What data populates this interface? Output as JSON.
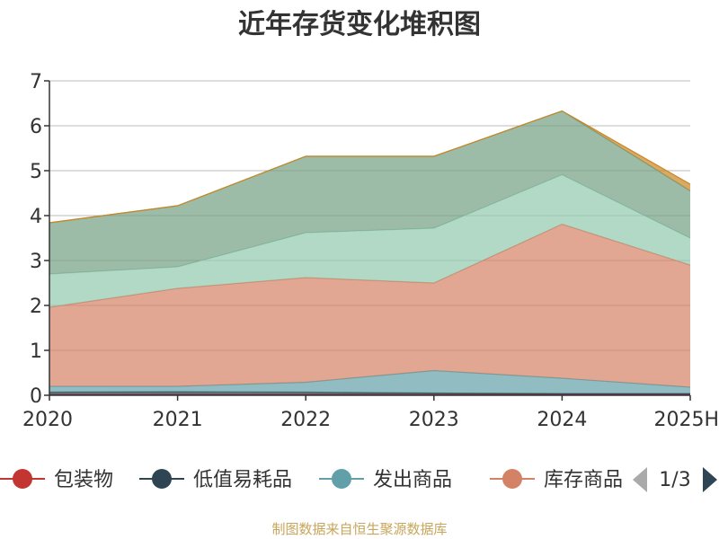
{
  "chart_data": {
    "type": "area",
    "stacked": true,
    "title": "近年存货变化堆积图",
    "ylabel": "",
    "categories": [
      "2020",
      "2021",
      "2022",
      "2023",
      "2024",
      "2025H"
    ],
    "ylim": [
      0,
      7
    ],
    "yticks": [
      0,
      1,
      2,
      3,
      4,
      5,
      6,
      7
    ],
    "grid": true,
    "series": [
      {
        "name": "包装物",
        "color": "#c23531",
        "values": [
          0.02,
          0.02,
          0.02,
          0.02,
          0.02,
          0.02
        ]
      },
      {
        "name": "低值易耗品",
        "color": "#2f4554",
        "values": [
          0.05,
          0.06,
          0.05,
          0.03,
          0.02,
          0.02
        ]
      },
      {
        "name": "发出商品",
        "color": "#61a0a8",
        "values": [
          0.13,
          0.12,
          0.22,
          0.5,
          0.34,
          0.14
        ]
      },
      {
        "name": "库存商品",
        "color": "#d48265",
        "values": [
          1.76,
          2.18,
          2.33,
          1.95,
          3.43,
          2.72
        ]
      },
      {
        "name": "",
        "color": "#91c7ae",
        "values": [
          0.74,
          0.48,
          1.0,
          1.22,
          1.1,
          0.6
        ]
      },
      {
        "name": "",
        "color": "#749f83",
        "values": [
          1.14,
          1.36,
          1.7,
          1.6,
          1.42,
          1.05
        ]
      },
      {
        "name": "",
        "color": "#ca8622",
        "values": [
          0.0,
          0.0,
          0.0,
          0.0,
          0.0,
          0.15
        ]
      }
    ]
  },
  "legend": {
    "items": [
      "包装物",
      "低值易耗品",
      "发出商品",
      "库存商品"
    ],
    "page_label": "1/3"
  },
  "source": "制图数据来自恒生聚源数据库"
}
